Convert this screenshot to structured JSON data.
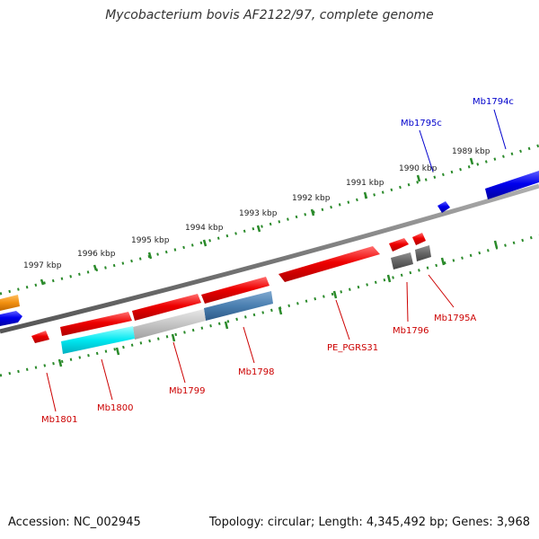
{
  "title": "Mycobacterium bovis AF2122/97, complete genome",
  "footer": {
    "accession": "Accession: NC_002945",
    "summary": "Topology: circular; Length: 4,345,492 bp; Genes: 3,968"
  },
  "kbp_labels": [
    "1997 kbp",
    "1996 kbp",
    "1995 kbp",
    "1994 kbp",
    "1993 kbp",
    "1992 kbp",
    "1991 kbp",
    "1990 kbp",
    "1989 kbp"
  ],
  "gene_labels": {
    "mb1794c": "Mb1794c",
    "mb1795c": "Mb1795c",
    "mb1795a": "Mb1795A",
    "mb1796": "Mb1796",
    "pe_pgrs31": "PE_PGRS31",
    "mb1798": "Mb1798",
    "mb1799": "Mb1799",
    "mb1800": "Mb1800",
    "mb1801": "Mb1801"
  },
  "colors": {
    "forward_gene": "#ee0000",
    "reverse_gene": "#0000ee",
    "backbone": "#777777",
    "ticks": "#2a8a2a",
    "label_forward": "#cc0000",
    "label_reverse": "#0000cc"
  }
}
